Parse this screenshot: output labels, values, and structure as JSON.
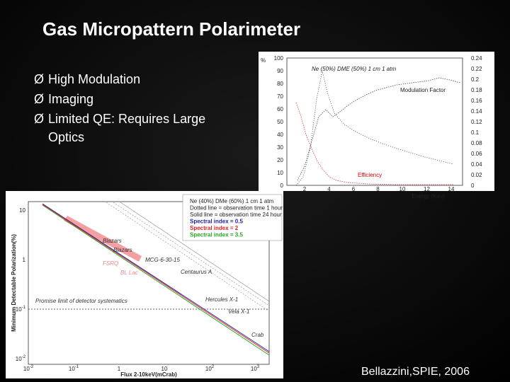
{
  "slide": {
    "title": "Gas Micropattern Polarimeter",
    "bullets": [
      "High Modulation",
      "Imaging",
      "Limited QE: Requires Large",
      "Optics"
    ],
    "bullet_marker": "Ø",
    "citation": "Bellazzini,SPIE, 2006"
  },
  "figure_top": {
    "y_unit": "%",
    "title": "Ne (50%) DME (50%) 1 cm 1 atm",
    "curve_labels": [
      "Modulation Factor",
      "Efficiency"
    ],
    "x_label": "Energy (Kev)",
    "y_ticks": [
      "0",
      "10",
      "20",
      "30",
      "40",
      "50",
      "60",
      "70",
      "80",
      "90",
      "100"
    ],
    "y2_ticks": [
      "0",
      "0.02",
      "0.04",
      "0.06",
      "0.08",
      "0.1",
      "0.12",
      "0.14",
      "0.16",
      "0.18",
      "0.2",
      "0.22",
      "0.24"
    ],
    "x_ticks": [
      "2",
      "4",
      "6",
      "8",
      "10",
      "12",
      "14"
    ]
  },
  "figure_bottom": {
    "y_label": "Minimum Detectable Polarization(%)",
    "x_label": "Flux 2-10keV(mCrab)",
    "legend": [
      "Ne (40%) DMe (60%) 1 cm 1 atm",
      "Dotted line = observation time 1 hour",
      "Solid line = observation time 24 hour",
      "Spectral index = 0.5",
      "Spectral index = 2",
      "Spectral index = 3.5"
    ],
    "annotations": [
      "Blazars",
      "Blazars",
      "FSRQ",
      "BL Lac",
      "MCG-6-30-15",
      "Centaurus A",
      "Hercules X-1",
      "Vela X-1",
      "Crab",
      "Promise limit of detector systematics"
    ],
    "y_ticks": [
      {
        "base": "10",
        "exp": ""
      },
      {
        "base": "1",
        "exp": ""
      },
      {
        "base": "10",
        "exp": "-1"
      },
      {
        "base": "10",
        "exp": "-2"
      }
    ],
    "x_ticks": [
      {
        "base": "10",
        "exp": "-2"
      },
      {
        "base": "10",
        "exp": "-1"
      },
      {
        "base": "1",
        "exp": ""
      },
      {
        "base": "10",
        "exp": ""
      },
      {
        "base": "10",
        "exp": "2"
      },
      {
        "base": "10",
        "exp": "3"
      }
    ]
  }
}
